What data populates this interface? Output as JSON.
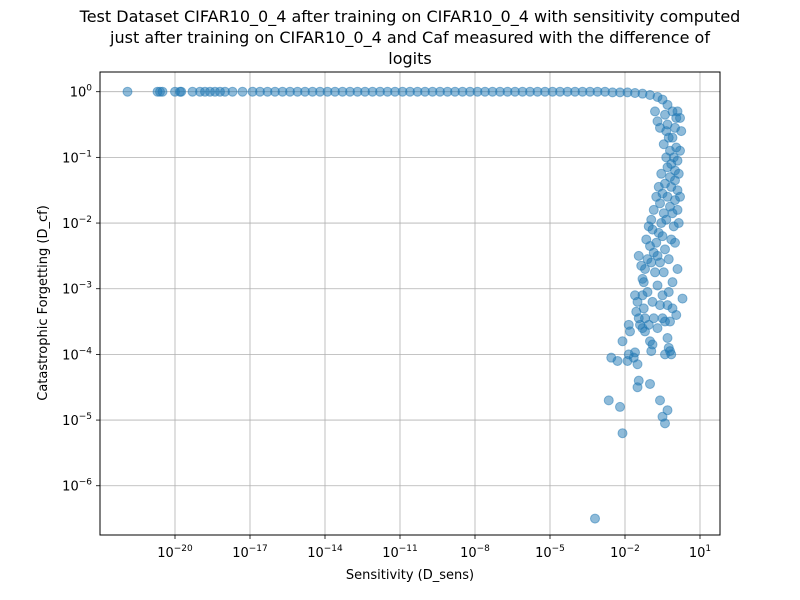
{
  "chart_data": {
    "type": "scatter",
    "title": [
      "Test Dataset CIFAR10_0_4 after training on CIFAR10_0_4 with sensitivity computed",
      "just after training on CIFAR10_0_4 and Caf measured with the difference of",
      "logits"
    ],
    "xlabel": "Sensitivity (D_sens)",
    "ylabel": "Catastrophic Forgetting (D_cf)",
    "x_scale": "log",
    "y_scale": "log",
    "xlim_exp": [
      -23.0,
      1.8
    ],
    "ylim_exp": [
      -6.75,
      0.3
    ],
    "x_ticks": [
      {
        "base": "10",
        "exp": "−20",
        "value_exp": -20
      },
      {
        "base": "10",
        "exp": "−17",
        "value_exp": -17
      },
      {
        "base": "10",
        "exp": "−14",
        "value_exp": -14
      },
      {
        "base": "10",
        "exp": "−11",
        "value_exp": -11
      },
      {
        "base": "10",
        "exp": "−8",
        "value_exp": -8
      },
      {
        "base": "10",
        "exp": "−5",
        "value_exp": -5
      },
      {
        "base": "10",
        "exp": "−2",
        "value_exp": -2
      },
      {
        "base": "10",
        "exp": "1",
        "value_exp": 1
      }
    ],
    "y_ticks": [
      {
        "base": "10",
        "exp": "−6",
        "value_exp": -6
      },
      {
        "base": "10",
        "exp": "−5",
        "value_exp": -5
      },
      {
        "base": "10",
        "exp": "−4",
        "value_exp": -4
      },
      {
        "base": "10",
        "exp": "−3",
        "value_exp": -3
      },
      {
        "base": "10",
        "exp": "−2",
        "value_exp": -2
      },
      {
        "base": "10",
        "exp": "−1",
        "value_exp": -1
      },
      {
        "base": "10",
        "exp": "0",
        "value_exp": 0
      }
    ],
    "grid": true,
    "marker_color": "#1f77b4",
    "marker_alpha": 0.5,
    "series": [
      {
        "name": "samples",
        "points_log10": [
          [
            -21.9,
            0.0
          ],
          [
            -20.7,
            0.0
          ],
          [
            -20.6,
            0.0
          ],
          [
            -20.5,
            0.0
          ],
          [
            -20.0,
            0.0
          ],
          [
            -19.8,
            0.0
          ],
          [
            -19.75,
            0.0
          ],
          [
            -19.3,
            0.0
          ],
          [
            -19.0,
            0.0
          ],
          [
            -18.8,
            0.0
          ],
          [
            -18.6,
            0.0
          ],
          [
            -18.4,
            0.0
          ],
          [
            -18.2,
            0.0
          ],
          [
            -18.0,
            0.0
          ],
          [
            -17.7,
            0.0
          ],
          [
            -17.3,
            0.0
          ],
          [
            -16.9,
            0.0
          ],
          [
            -16.6,
            0.0
          ],
          [
            -16.3,
            0.0
          ],
          [
            -16.0,
            0.0
          ],
          [
            -15.7,
            0.0
          ],
          [
            -15.4,
            0.0
          ],
          [
            -15.1,
            0.0
          ],
          [
            -14.8,
            0.0
          ],
          [
            -14.5,
            0.0
          ],
          [
            -14.2,
            0.0
          ],
          [
            -13.9,
            0.0
          ],
          [
            -13.6,
            0.0
          ],
          [
            -13.3,
            0.0
          ],
          [
            -13.0,
            0.0
          ],
          [
            -12.7,
            0.0
          ],
          [
            -12.4,
            0.0
          ],
          [
            -12.1,
            0.0
          ],
          [
            -11.8,
            0.0
          ],
          [
            -11.5,
            0.0
          ],
          [
            -11.2,
            0.0
          ],
          [
            -10.9,
            0.0
          ],
          [
            -10.6,
            0.0
          ],
          [
            -10.3,
            0.0
          ],
          [
            -10.0,
            0.0
          ],
          [
            -9.7,
            0.0
          ],
          [
            -9.4,
            0.0
          ],
          [
            -9.1,
            0.0
          ],
          [
            -8.8,
            0.0
          ],
          [
            -8.5,
            0.0
          ],
          [
            -8.2,
            0.0
          ],
          [
            -7.9,
            0.0
          ],
          [
            -7.6,
            0.0
          ],
          [
            -7.3,
            0.0
          ],
          [
            -7.0,
            0.0
          ],
          [
            -6.7,
            0.0
          ],
          [
            -6.4,
            0.0
          ],
          [
            -6.1,
            0.0
          ],
          [
            -5.8,
            0.0
          ],
          [
            -5.5,
            0.0
          ],
          [
            -5.2,
            0.0
          ],
          [
            -4.9,
            0.0
          ],
          [
            -4.6,
            0.0
          ],
          [
            -4.3,
            0.0
          ],
          [
            -4.0,
            0.0
          ],
          [
            -3.7,
            0.0
          ],
          [
            -3.4,
            0.0
          ],
          [
            -3.1,
            0.0
          ],
          [
            -2.8,
            0.0
          ],
          [
            -2.5,
            -0.01
          ],
          [
            -2.2,
            -0.01
          ],
          [
            -1.9,
            -0.01
          ],
          [
            -1.6,
            -0.02
          ],
          [
            -1.3,
            -0.03
          ],
          [
            -1.0,
            -0.05
          ],
          [
            -0.7,
            -0.08
          ],
          [
            -0.5,
            -0.12
          ],
          [
            -0.3,
            -0.2
          ],
          [
            -0.1,
            -0.3
          ],
          [
            0.05,
            -0.4
          ],
          [
            -0.4,
            -0.35
          ],
          [
            -0.3,
            -0.5
          ],
          [
            -0.25,
            -0.7
          ],
          [
            -0.2,
            -0.9
          ],
          [
            -0.15,
            -1.1
          ],
          [
            -0.35,
            -0.6
          ],
          [
            -0.45,
            -0.8
          ],
          [
            -0.1,
            -0.7
          ],
          [
            0.0,
            -0.55
          ],
          [
            0.05,
            -0.85
          ],
          [
            -0.05,
            -1.0
          ],
          [
            0.0,
            -1.2
          ],
          [
            0.1,
            -1.05
          ],
          [
            -0.2,
            -1.3
          ],
          [
            -0.3,
            -1.15
          ],
          [
            -0.4,
            -1.4
          ],
          [
            -0.5,
            -1.55
          ],
          [
            -0.6,
            -1.7
          ],
          [
            -0.45,
            -1.85
          ],
          [
            -0.3,
            -1.6
          ],
          [
            -0.15,
            -1.45
          ],
          [
            0.0,
            -1.35
          ],
          [
            0.1,
            -1.5
          ],
          [
            -0.55,
            -2.0
          ],
          [
            -0.65,
            -2.15
          ],
          [
            -0.75,
            -2.3
          ],
          [
            -0.85,
            -2.45
          ],
          [
            -0.95,
            -2.6
          ],
          [
            -0.7,
            -2.5
          ],
          [
            -0.5,
            -2.2
          ],
          [
            -0.35,
            -1.95
          ],
          [
            -0.2,
            -1.75
          ],
          [
            -0.1,
            -1.85
          ],
          [
            0.0,
            -1.65
          ],
          [
            -0.05,
            -2.05
          ],
          [
            -0.15,
            -2.25
          ],
          [
            -0.9,
            -2.1
          ],
          [
            -1.0,
            -2.35
          ],
          [
            -1.1,
            -2.55
          ],
          [
            -1.2,
            -2.7
          ],
          [
            -1.3,
            -2.85
          ],
          [
            -0.8,
            -2.75
          ],
          [
            -0.6,
            -2.6
          ],
          [
            -0.4,
            -2.4
          ],
          [
            -0.25,
            -2.55
          ],
          [
            0.0,
            -2.3
          ],
          [
            0.15,
            -2.0
          ],
          [
            0.1,
            -1.8
          ],
          [
            0.2,
            -1.6
          ],
          [
            0.15,
            -1.25
          ],
          [
            0.2,
            -0.9
          ],
          [
            0.25,
            -0.6
          ],
          [
            0.2,
            -0.4
          ],
          [
            0.1,
            -0.3
          ],
          [
            -0.6,
            -0.55
          ],
          [
            -0.7,
            -0.45
          ],
          [
            -0.8,
            -0.3
          ],
          [
            -0.55,
            -1.25
          ],
          [
            -0.65,
            -1.45
          ],
          [
            -0.75,
            -1.6
          ],
          [
            -0.85,
            -1.8
          ],
          [
            -0.95,
            -1.95
          ],
          [
            -1.05,
            -2.05
          ],
          [
            -1.15,
            -2.25
          ],
          [
            -0.35,
            -1.0
          ],
          [
            -1.45,
            -2.5
          ],
          [
            -1.35,
            -2.65
          ],
          [
            -1.25,
            -2.9
          ],
          [
            -1.1,
            -3.05
          ],
          [
            -0.9,
            -3.2
          ],
          [
            -0.7,
            -2.95
          ],
          [
            -0.5,
            -3.1
          ],
          [
            -0.3,
            -3.25
          ],
          [
            -0.1,
            -2.9
          ],
          [
            0.1,
            -2.7
          ],
          [
            -1.3,
            -3.1
          ],
          [
            -1.25,
            -3.3
          ],
          [
            -1.2,
            -3.45
          ],
          [
            -1.05,
            -3.55
          ],
          [
            -0.85,
            -3.45
          ],
          [
            -0.7,
            -3.6
          ],
          [
            -0.5,
            -3.45
          ],
          [
            -0.2,
            -3.5
          ],
          [
            -0.1,
            -3.3
          ],
          [
            0.3,
            -3.15
          ],
          [
            -1.0,
            -3.8
          ],
          [
            -0.6,
            -3.25
          ],
          [
            -0.45,
            -2.75
          ],
          [
            -1.5,
            -3.2
          ],
          [
            -1.6,
            -3.1
          ],
          [
            -1.55,
            -3.35
          ],
          [
            -1.45,
            -3.45
          ],
          [
            -0.4,
            -3.5
          ],
          [
            -0.25,
            -3.05
          ],
          [
            0.05,
            -3.4
          ],
          [
            -1.3,
            -3.6
          ],
          [
            -1.4,
            -3.55
          ],
          [
            -1.2,
            -3.65
          ],
          [
            -0.95,
            -3.95
          ],
          [
            -0.9,
            -3.85
          ],
          [
            -1.85,
            -3.55
          ],
          [
            -1.8,
            -3.65
          ],
          [
            -0.3,
            -3.75
          ],
          [
            -0.25,
            -3.9
          ],
          [
            -0.4,
            -4.0
          ],
          [
            -0.2,
            -3.95
          ],
          [
            -0.15,
            -4.0
          ],
          [
            -1.5,
            -4.15
          ],
          [
            -1.6,
            -3.97
          ],
          [
            -1.65,
            -4.05
          ],
          [
            -1.85,
            -4.0
          ],
          [
            -1.9,
            -4.1
          ],
          [
            -2.3,
            -4.1
          ],
          [
            -2.1,
            -3.8
          ],
          [
            -2.2,
            -4.8
          ],
          [
            -2.65,
            -4.7
          ],
          [
            -2.55,
            -4.05
          ],
          [
            -2.1,
            -5.2
          ],
          [
            -1.5,
            -4.5
          ],
          [
            -1.45,
            -4.4
          ],
          [
            -1.0,
            -4.45
          ],
          [
            -0.6,
            -4.7
          ],
          [
            -0.5,
            -4.95
          ],
          [
            -0.4,
            -5.05
          ],
          [
            -0.3,
            -4.85
          ],
          [
            -3.2,
            -6.5
          ]
        ]
      }
    ]
  }
}
